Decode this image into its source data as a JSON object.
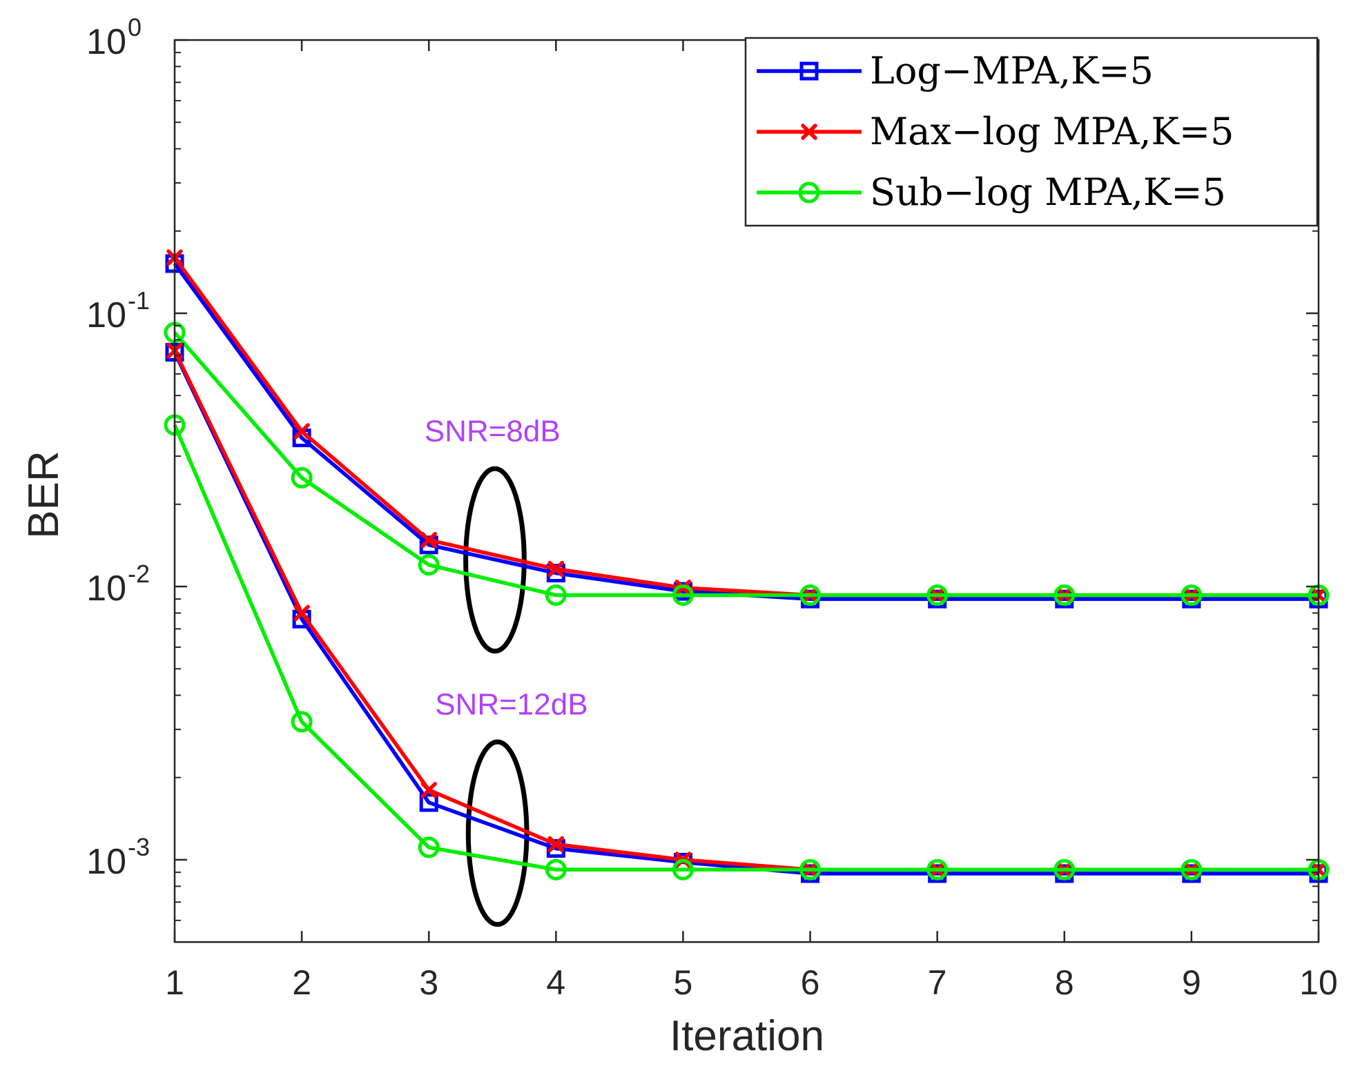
{
  "chart_data": {
    "type": "line",
    "yscale": "log",
    "xlabel": "Iteration",
    "ylabel": "BER",
    "xlim": [
      1,
      10
    ],
    "ylim": [
      0.0005,
      1
    ],
    "x": [
      1,
      2,
      3,
      4,
      5,
      6,
      7,
      8,
      9,
      10
    ],
    "xticks": [
      "1",
      "2",
      "3",
      "4",
      "5",
      "6",
      "7",
      "8",
      "9",
      "10"
    ],
    "yticks": [
      {
        "value": 1,
        "base": "10",
        "exp": "0"
      },
      {
        "value": 0.1,
        "base": "10",
        "exp": "-1"
      },
      {
        "value": 0.01,
        "base": "10",
        "exp": "-2"
      },
      {
        "value": 0.001,
        "base": "10",
        "exp": "-3"
      }
    ],
    "grid": false,
    "legend_position": "top-right",
    "legend": [
      {
        "label": "Log−MPA,K=5",
        "color": "#0000ff",
        "marker": "square"
      },
      {
        "label": "Max−log MPA,K=5",
        "color": "#ff0000",
        "marker": "x"
      },
      {
        "label": "Sub−log MPA,K=5",
        "color": "#00ee00",
        "marker": "circle"
      }
    ],
    "series": [
      {
        "name": "Log−MPA,K=5",
        "snr": "8dB",
        "color": "#0000ff",
        "marker": "square",
        "values": [
          0.152,
          0.035,
          0.0142,
          0.0112,
          0.0096,
          0.009,
          0.009,
          0.009,
          0.009,
          0.009
        ]
      },
      {
        "name": "Max−log MPA,K=5",
        "snr": "8dB",
        "color": "#ff0000",
        "marker": "x",
        "values": [
          0.16,
          0.037,
          0.0148,
          0.0116,
          0.0099,
          0.0093,
          0.0093,
          0.0093,
          0.0093,
          0.0093
        ]
      },
      {
        "name": "Sub−log MPA,K=5",
        "snr": "8dB",
        "color": "#00ee00",
        "marker": "circle",
        "values": [
          0.085,
          0.025,
          0.012,
          0.0093,
          0.0093,
          0.0093,
          0.0093,
          0.0093,
          0.0093,
          0.0093
        ]
      },
      {
        "name": "Log−MPA,K=5",
        "snr": "12dB",
        "color": "#0000ff",
        "marker": "square",
        "values": [
          0.072,
          0.0076,
          0.00162,
          0.0011,
          0.00098,
          0.00089,
          0.00089,
          0.00089,
          0.00089,
          0.00089
        ]
      },
      {
        "name": "Max−log MPA,K=5",
        "snr": "12dB",
        "color": "#ff0000",
        "marker": "x",
        "values": [
          0.073,
          0.008,
          0.0018,
          0.00114,
          0.001,
          0.00092,
          0.00092,
          0.00092,
          0.00092,
          0.00092
        ]
      },
      {
        "name": "Sub−log MPA,K=5",
        "snr": "12dB",
        "color": "#00ee00",
        "marker": "circle",
        "values": [
          0.039,
          0.0032,
          0.00111,
          0.00092,
          0.00092,
          0.00092,
          0.00092,
          0.00092,
          0.00092,
          0.00092
        ]
      }
    ],
    "annotations": [
      {
        "text": "SNR=8dB",
        "x": 3.5,
        "y": 0.034,
        "color": "#b040ff",
        "ellipse": {
          "cx": 3.52,
          "y_center": 0.0125,
          "rx_data": 0.23,
          "y_top": 0.027,
          "y_bottom": 0.0058
        }
      },
      {
        "text": "SNR=12dB",
        "x": 3.65,
        "y": 0.0034,
        "color": "#b040ff",
        "ellipse": {
          "cx": 3.54,
          "y_center": 0.00126,
          "rx_data": 0.23,
          "y_top": 0.0027,
          "y_bottom": 0.00058
        }
      }
    ]
  }
}
